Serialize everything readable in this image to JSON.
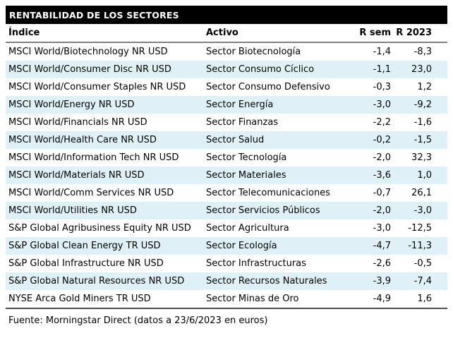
{
  "title": "RENTABILIDAD DE LOS SECTORES",
  "table": {
    "columns": [
      "Índice",
      "Activo",
      "R sem",
      "R 2023"
    ],
    "rows": [
      {
        "indice": "MSCI World/Biotechnology NR USD",
        "activo": "Sector Biotecnología",
        "r_sem": "-1,4",
        "r_2023": "-8,3"
      },
      {
        "indice": "MSCI World/Consumer Disc NR USD",
        "activo": "Sector Consumo Cíclico",
        "r_sem": "-1,1",
        "r_2023": "23,0"
      },
      {
        "indice": "MSCI World/Consumer Staples NR USD",
        "activo": "Sector Consumo Defensivo",
        "r_sem": "-0,3",
        "r_2023": "1,2"
      },
      {
        "indice": "MSCI World/Energy NR USD",
        "activo": "Sector Energía",
        "r_sem": "-3,0",
        "r_2023": "-9,2"
      },
      {
        "indice": "MSCI World/Financials NR USD",
        "activo": "Sector Finanzas",
        "r_sem": "-2,2",
        "r_2023": "-1,6"
      },
      {
        "indice": "MSCI World/Health Care NR USD",
        "activo": "Sector Salud",
        "r_sem": "-0,2",
        "r_2023": "-1,5"
      },
      {
        "indice": "MSCI World/Information Tech NR USD",
        "activo": "Sector Tecnología",
        "r_sem": "-2,0",
        "r_2023": "32,3"
      },
      {
        "indice": "MSCI World/Materials NR USD",
        "activo": "Sector Materiales",
        "r_sem": "-3,6",
        "r_2023": "1,0"
      },
      {
        "indice": "MSCI World/Comm Services NR USD",
        "activo": "Sector Telecomunicaciones",
        "r_sem": "-0,7",
        "r_2023": "26,1"
      },
      {
        "indice": "MSCI World/Utilities NR USD",
        "activo": "Sector Servicios Públicos",
        "r_sem": "-2,0",
        "r_2023": "-3,0"
      },
      {
        "indice": "S&P Global Agribusiness Equity NR USD",
        "activo": "Sector Agricultura",
        "r_sem": "-3,0",
        "r_2023": "-12,5"
      },
      {
        "indice": "S&P Global Clean Energy TR USD",
        "activo": "Sector Ecología",
        "r_sem": "-4,7",
        "r_2023": "-11,3"
      },
      {
        "indice": "S&P Global Infrastructure NR USD",
        "activo": "Sector Infrastructuras",
        "r_sem": "-2,6",
        "r_2023": "-0,5"
      },
      {
        "indice": "S&P Global Natural Resources NR USD",
        "activo": "Sector Recursos Naturales",
        "r_sem": "-3,9",
        "r_2023": "-7,4"
      },
      {
        "indice": "NYSE Arca Gold Miners TR USD",
        "activo": "Sector Minas de Oro",
        "r_sem": "-4,9",
        "r_2023": "1,6"
      }
    ]
  },
  "footer": "Fuente: Morningstar Direct (datos a 23/6/2023 en euros)",
  "colors": {
    "title_bg": "#000000",
    "title_text": "#ffffff",
    "row_alt_bg": "#dff0f6",
    "header_rule": "#808080",
    "bottom_rule": "#4d4d4d",
    "body_text": "#000000"
  }
}
